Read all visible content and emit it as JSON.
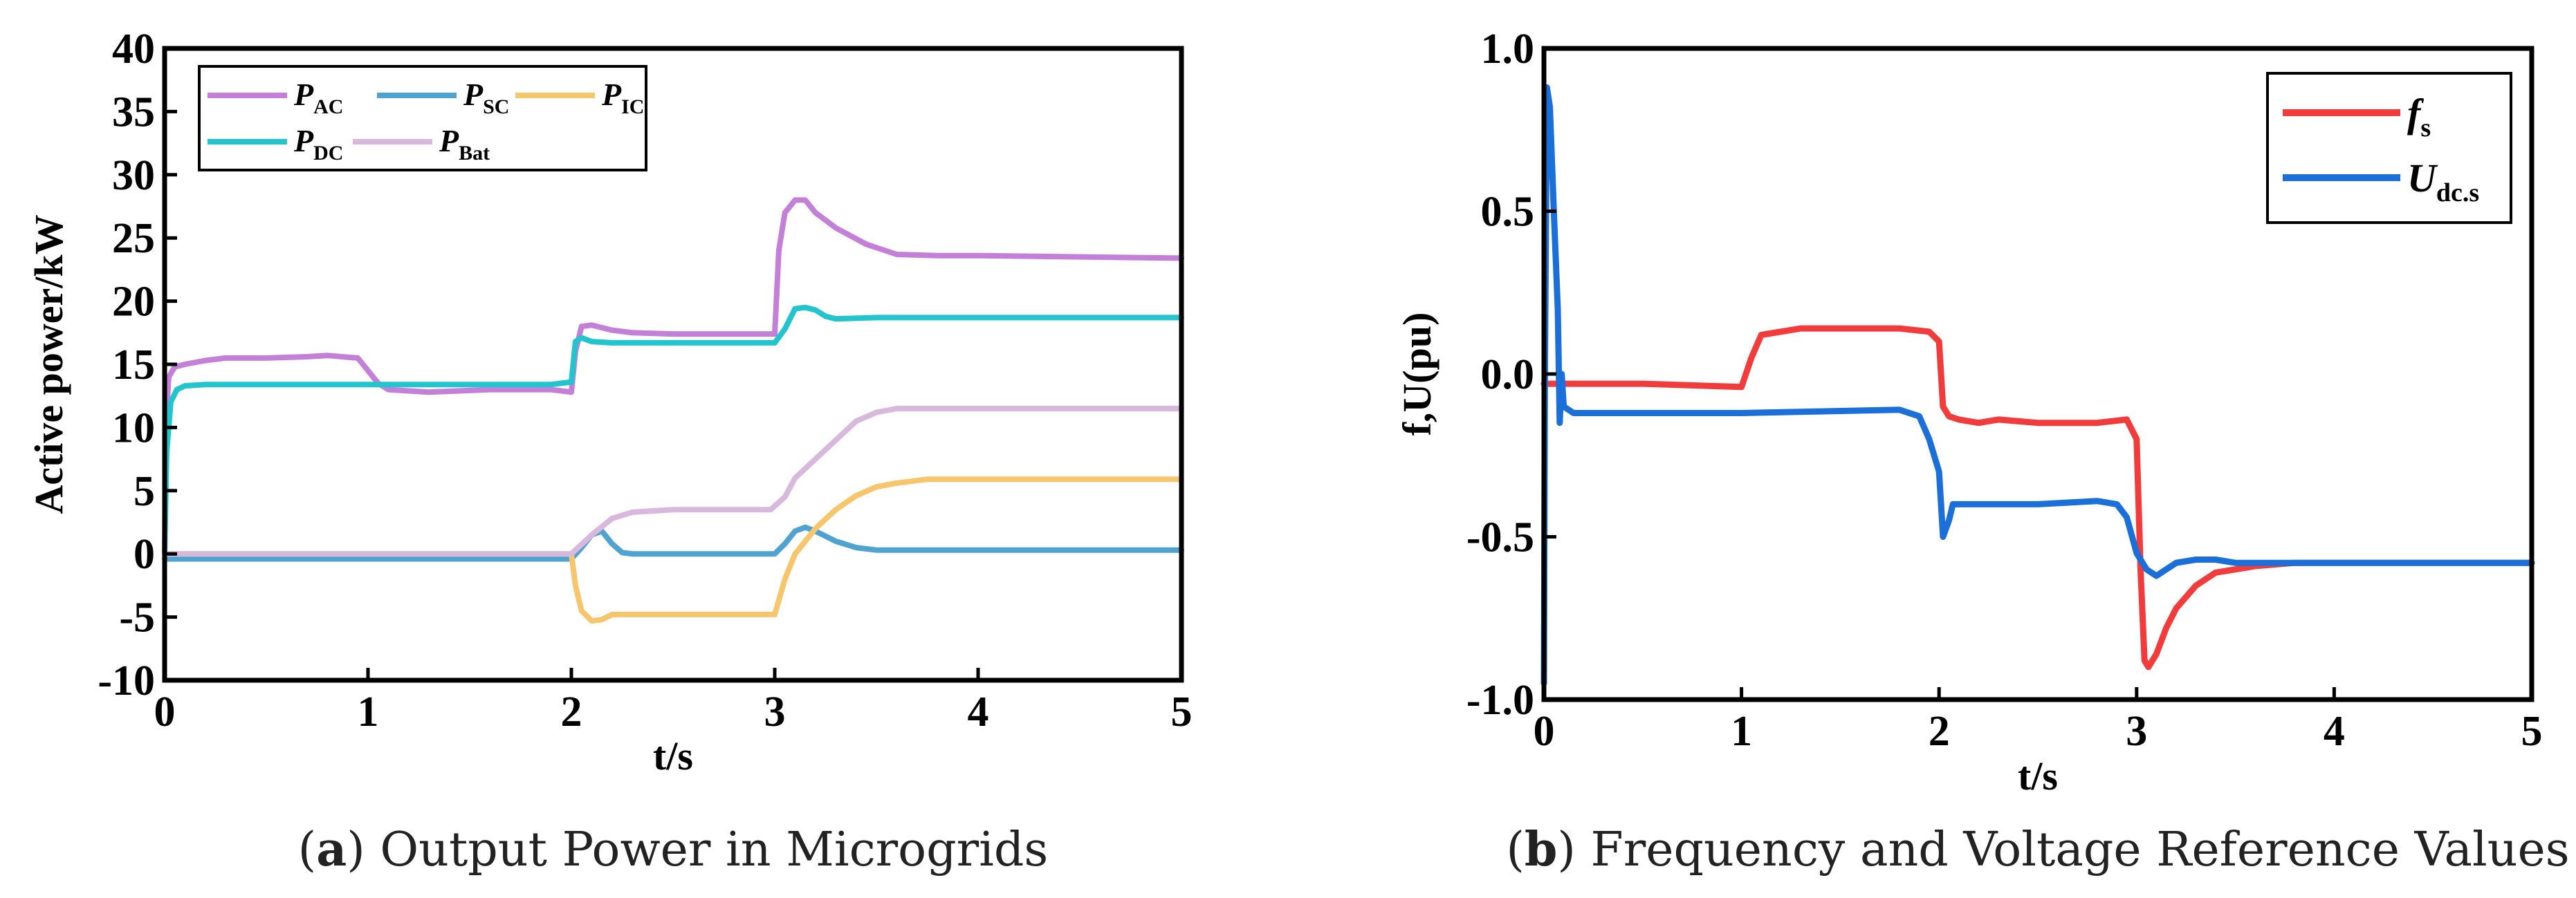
{
  "chart_data": [
    {
      "type": "line",
      "caption_letter": "a",
      "caption_text": "Output Power in Microgrids",
      "xlabel": "t/s",
      "ylabel": "Active power/kW",
      "xlim": [
        0,
        5
      ],
      "ylim": [
        -10,
        40
      ],
      "xticks": [
        "0",
        "1",
        "2",
        "3",
        "4",
        "5"
      ],
      "yticks": [
        "-10",
        "-5",
        "0",
        "5",
        "10",
        "15",
        "20",
        "25",
        "30",
        "35",
        "40"
      ],
      "series": [
        {
          "name": "P",
          "sub": "AC",
          "color": "#c47fd8",
          "x": [
            0,
            0.005,
            0.02,
            0.05,
            0.1,
            0.2,
            0.3,
            0.5,
            0.7,
            0.8,
            0.95,
            1.0,
            1.05,
            1.1,
            1.3,
            1.6,
            1.9,
            2.0,
            2.02,
            2.05,
            2.1,
            2.15,
            2.2,
            2.3,
            2.5,
            2.8,
            2.98,
            3.0,
            3.02,
            3.05,
            3.1,
            3.15,
            3.2,
            3.3,
            3.45,
            3.6,
            3.8,
            4.0,
            4.5,
            5.0
          ],
          "y": [
            0,
            10,
            14,
            14.8,
            15,
            15.3,
            15.5,
            15.5,
            15.6,
            15.7,
            15.5,
            14.5,
            13.5,
            13,
            12.8,
            13,
            13,
            12.8,
            16,
            18,
            18.1,
            17.9,
            17.7,
            17.5,
            17.4,
            17.4,
            17.4,
            17.4,
            24,
            27,
            28,
            28,
            27,
            25.8,
            24.5,
            23.7,
            23.6,
            23.6,
            23.5,
            23.4
          ]
        },
        {
          "name": "P",
          "sub": "SC",
          "color": "#4fa3d1",
          "x": [
            0,
            0.2,
            1.0,
            2.0,
            2.05,
            2.1,
            2.15,
            2.2,
            2.25,
            2.3,
            2.5,
            2.8,
            3.0,
            3.05,
            3.1,
            3.15,
            3.2,
            3.3,
            3.4,
            3.5,
            4.0,
            5.0
          ],
          "y": [
            -0.4,
            -0.4,
            -0.4,
            -0.4,
            0.5,
            1.5,
            1.8,
            0.8,
            0.1,
            0,
            0,
            0,
            0,
            0.8,
            1.8,
            2.1,
            1.8,
            1,
            0.5,
            0.3,
            0.3,
            0.3
          ]
        },
        {
          "name": "P",
          "sub": "IC",
          "color": "#f7c56b",
          "x": [
            0,
            2.0,
            2.02,
            2.05,
            2.1,
            2.15,
            2.2,
            2.3,
            2.6,
            2.9,
            3.0,
            3.05,
            3.1,
            3.2,
            3.3,
            3.4,
            3.5,
            3.6,
            3.75,
            4.0,
            5.0
          ],
          "y": [
            0,
            0,
            -2.5,
            -4.5,
            -5.3,
            -5.2,
            -4.8,
            -4.8,
            -4.8,
            -4.8,
            -4.8,
            -2,
            0,
            2,
            3.5,
            4.6,
            5.3,
            5.6,
            5.9,
            5.9,
            5.9
          ]
        },
        {
          "name": "P",
          "sub": "DC",
          "color": "#22c4cd",
          "x": [
            0,
            0.01,
            0.03,
            0.06,
            0.1,
            0.2,
            0.5,
            1.0,
            1.5,
            1.9,
            2.0,
            2.02,
            2.05,
            2.1,
            2.2,
            2.5,
            2.95,
            3.0,
            3.05,
            3.1,
            3.15,
            3.2,
            3.25,
            3.3,
            3.5,
            4.0,
            5.0
          ],
          "y": [
            0,
            8,
            12,
            13,
            13.3,
            13.4,
            13.4,
            13.4,
            13.4,
            13.4,
            13.6,
            16.8,
            17.1,
            16.8,
            16.7,
            16.7,
            16.7,
            16.7,
            17.8,
            19.4,
            19.5,
            19.3,
            18.8,
            18.6,
            18.7,
            18.7,
            18.7
          ]
        },
        {
          "name": "P",
          "sub": "Bat",
          "color": "#d9b8de",
          "x": [
            0,
            0.02,
            0.05,
            0.1,
            1.0,
            2.0,
            2.1,
            2.2,
            2.3,
            2.5,
            2.8,
            2.98,
            3.05,
            3.1,
            3.2,
            3.3,
            3.4,
            3.5,
            3.6,
            3.8,
            4.0,
            5.0
          ],
          "y": [
            0,
            0,
            0,
            0,
            0,
            0,
            1.5,
            2.8,
            3.3,
            3.5,
            3.5,
            3.5,
            4.5,
            6,
            7.5,
            9,
            10.5,
            11.2,
            11.5,
            11.5,
            11.5,
            11.5
          ]
        }
      ]
    },
    {
      "type": "line",
      "caption_letter": "b",
      "caption_text": "Frequency and Voltage Reference Values",
      "xlabel": "t/s",
      "ylabel": "f,U(pu)",
      "xlim": [
        0,
        5
      ],
      "ylim": [
        -1.0,
        1.0
      ],
      "xticks": [
        "0",
        "1",
        "2",
        "3",
        "4",
        "5"
      ],
      "yticks": [
        "-1.0",
        "-0.5",
        "0.0",
        "0.5",
        "1.0"
      ],
      "series": [
        {
          "name": "f",
          "sub": "s",
          "color": "#f23b3b",
          "x": [
            0,
            0.5,
            1.0,
            1.05,
            1.1,
            1.3,
            1.5,
            1.8,
            1.95,
            2.0,
            2.02,
            2.05,
            2.1,
            2.2,
            2.3,
            2.5,
            2.8,
            2.95,
            3.0,
            3.02,
            3.04,
            3.06,
            3.1,
            3.15,
            3.2,
            3.3,
            3.4,
            3.6,
            3.8,
            4.0,
            5.0
          ],
          "y": [
            -0.03,
            -0.03,
            -0.04,
            0.05,
            0.12,
            0.14,
            0.14,
            0.14,
            0.13,
            0.1,
            -0.1,
            -0.13,
            -0.14,
            -0.15,
            -0.14,
            -0.15,
            -0.15,
            -0.14,
            -0.2,
            -0.6,
            -0.88,
            -0.9,
            -0.86,
            -0.78,
            -0.72,
            -0.65,
            -0.61,
            -0.59,
            -0.58,
            -0.58,
            -0.58
          ]
        },
        {
          "name": "U",
          "sub": "dc.s",
          "color": "#1a6fd9",
          "x": [
            0,
            0.005,
            0.015,
            0.03,
            0.05,
            0.07,
            0.08,
            0.09,
            0.1,
            0.15,
            0.3,
            1.0,
            1.8,
            1.9,
            1.95,
            2.0,
            2.02,
            2.05,
            2.07,
            2.1,
            2.15,
            2.2,
            2.5,
            2.8,
            2.9,
            2.95,
            3.0,
            3.05,
            3.1,
            3.15,
            3.2,
            3.3,
            3.4,
            3.5,
            4.0,
            5.0
          ],
          "y": [
            -0.95,
            0.0,
            0.88,
            0.82,
            0.5,
            0.2,
            -0.15,
            0.0,
            -0.1,
            -0.12,
            -0.12,
            -0.12,
            -0.11,
            -0.13,
            -0.2,
            -0.3,
            -0.5,
            -0.45,
            -0.4,
            -0.4,
            -0.4,
            -0.4,
            -0.4,
            -0.39,
            -0.4,
            -0.44,
            -0.55,
            -0.6,
            -0.62,
            -0.6,
            -0.58,
            -0.57,
            -0.57,
            -0.58,
            -0.58,
            -0.58
          ]
        }
      ]
    }
  ]
}
